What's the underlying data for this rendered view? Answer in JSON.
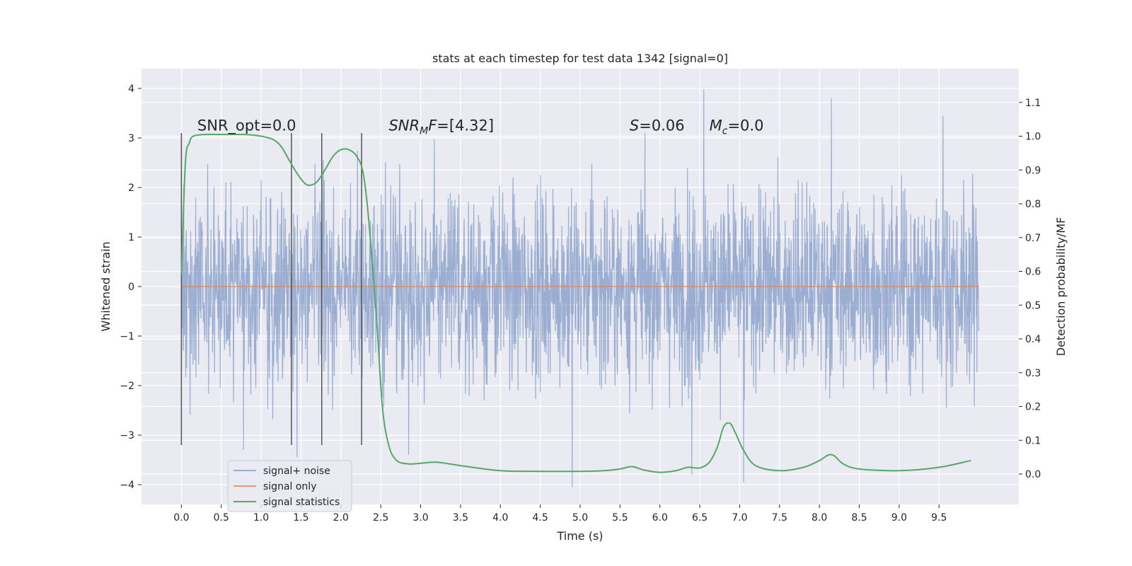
{
  "chart_data": {
    "type": "line",
    "title": "stats at each timestep for test data 1342 [signal=0]",
    "xlabel": "Time (s)",
    "ylabel": "Whitened strain",
    "y2label": "Detection probability/MF",
    "xlim": [
      -0.5,
      10.5
    ],
    "ylim": [
      -4.4,
      4.4
    ],
    "y2lim": [
      -0.09,
      1.2
    ],
    "x_ticks": [
      "0.0",
      "0.5",
      "1.0",
      "1.5",
      "2.0",
      "2.5",
      "3.0",
      "3.5",
      "4.0",
      "4.5",
      "5.0",
      "5.5",
      "6.0",
      "6.5",
      "7.0",
      "7.5",
      "8.0",
      "8.5",
      "9.0",
      "9.5"
    ],
    "y_ticks": [
      "−4",
      "−3",
      "−2",
      "−1",
      "0",
      "1",
      "2",
      "3",
      "4"
    ],
    "y2_ticks": [
      "0.0",
      "0.1",
      "0.2",
      "0.3",
      "0.4",
      "0.5",
      "0.6",
      "0.7",
      "0.8",
      "0.9",
      "1.0",
      "1.1"
    ],
    "grid": true,
    "legend_position": "lower-left",
    "colors": {
      "noise": "#4c72b0",
      "signal_only": "#dd8452",
      "statistics": "#55a868",
      "vlines": "#555555",
      "background": "#eaeaf2"
    },
    "series": [
      {
        "name": "signal+ noise",
        "axis": "left",
        "noise_envelope": {
          "x_range": [
            0.0,
            10.0
          ],
          "core_amplitude": 1.3,
          "typical_peak": 2.3,
          "max": 3.98,
          "min": -4.05
        },
        "extreme_points": [
          [
            0.78,
            -3.3
          ],
          [
            1.45,
            -3.45
          ],
          [
            2.85,
            -3.4
          ],
          [
            4.9,
            -4.05
          ],
          [
            6.4,
            -3.8
          ],
          [
            7.05,
            -3.95
          ],
          [
            6.55,
            3.98
          ],
          [
            8.15,
            3.8
          ],
          [
            9.55,
            3.45
          ]
        ]
      },
      {
        "name": "signal only",
        "axis": "left",
        "x": [
          0.0,
          10.0
        ],
        "y": [
          0.0,
          0.0
        ]
      },
      {
        "name": "signal statistics",
        "axis": "right",
        "x": [
          0.0,
          0.05,
          0.1,
          0.15,
          0.3,
          0.5,
          0.8,
          1.0,
          1.15,
          1.25,
          1.35,
          1.45,
          1.55,
          1.62,
          1.7,
          1.8,
          1.9,
          2.0,
          2.1,
          2.2,
          2.28,
          2.35,
          2.45,
          2.52,
          2.6,
          2.7,
          2.85,
          3.0,
          3.2,
          3.5,
          4.0,
          4.5,
          5.0,
          5.3,
          5.5,
          5.65,
          5.8,
          6.0,
          6.2,
          6.35,
          6.5,
          6.62,
          6.72,
          6.8,
          6.88,
          6.95,
          7.05,
          7.2,
          7.5,
          7.8,
          8.0,
          8.1,
          8.18,
          8.3,
          8.5,
          9.0,
          9.5,
          9.9
        ],
        "y": [
          0.59,
          0.92,
          0.98,
          1.0,
          1.005,
          1.005,
          1.005,
          1.0,
          0.99,
          0.97,
          0.93,
          0.89,
          0.86,
          0.855,
          0.865,
          0.9,
          0.94,
          0.96,
          0.96,
          0.94,
          0.89,
          0.75,
          0.45,
          0.2,
          0.085,
          0.04,
          0.03,
          0.032,
          0.035,
          0.025,
          0.01,
          0.008,
          0.008,
          0.01,
          0.015,
          0.022,
          0.012,
          0.005,
          0.01,
          0.02,
          0.018,
          0.035,
          0.08,
          0.14,
          0.15,
          0.12,
          0.07,
          0.025,
          0.01,
          0.02,
          0.04,
          0.055,
          0.055,
          0.03,
          0.015,
          0.01,
          0.02,
          0.04
        ]
      }
    ],
    "vertical_lines": {
      "x": [
        0.0,
        1.38,
        1.76,
        2.26
      ],
      "ymin": -3.2,
      "ymax": 3.1
    },
    "annotations": [
      {
        "id": "snr-opt",
        "x": 0.2,
        "y": 3.15,
        "parts": [
          {
            "t": "SNR_opt=0.0",
            "italic": false
          }
        ]
      },
      {
        "id": "snr-mf",
        "x": 2.6,
        "y": 3.15,
        "parts": [
          {
            "t": "SNR",
            "italic": true
          },
          {
            "t": "M",
            "italic": true,
            "sub": true
          },
          {
            "t": "F",
            "italic": true
          },
          {
            "t": "=[4.32]",
            "italic": false
          }
        ]
      },
      {
        "id": "s-stat",
        "x": 5.62,
        "y": 3.15,
        "parts": [
          {
            "t": "S",
            "italic": true
          },
          {
            "t": "=0.06",
            "italic": false
          }
        ]
      },
      {
        "id": "mc",
        "x": 6.62,
        "y": 3.15,
        "parts": [
          {
            "t": "M",
            "italic": true
          },
          {
            "t": "c",
            "italic": true,
            "sub": true
          },
          {
            "t": "=0.0",
            "italic": false
          }
        ]
      }
    ],
    "legend": [
      {
        "label": "signal+ noise",
        "color_key": "noise"
      },
      {
        "label": "signal only",
        "color_key": "signal_only"
      },
      {
        "label": "signal statistics",
        "color_key": "statistics"
      }
    ]
  }
}
